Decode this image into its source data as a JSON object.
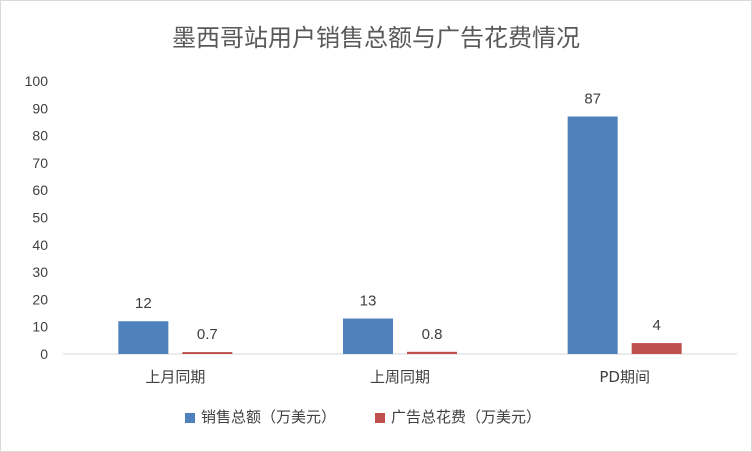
{
  "chart_data": {
    "type": "bar",
    "title": "墨西哥站用户销售总额与广告花费情况",
    "categories": [
      "上月同期",
      "上周同期",
      "PD期间"
    ],
    "series": [
      {
        "name": "销售总额（万美元）",
        "values": [
          12,
          13,
          87
        ],
        "labels": [
          "12",
          "13",
          "87"
        ],
        "color": "#4f81bd"
      },
      {
        "name": "广告总花费（万美元）",
        "values": [
          0.7,
          0.8,
          4
        ],
        "labels": [
          "0.7",
          "0.8",
          "4"
        ],
        "color": "#c0504d"
      }
    ],
    "ylim": [
      0,
      100
    ],
    "yticks": [
      "0",
      "10",
      "20",
      "30",
      "40",
      "50",
      "60",
      "70",
      "80",
      "90",
      "100"
    ],
    "grid": false,
    "legend": "bottom"
  }
}
